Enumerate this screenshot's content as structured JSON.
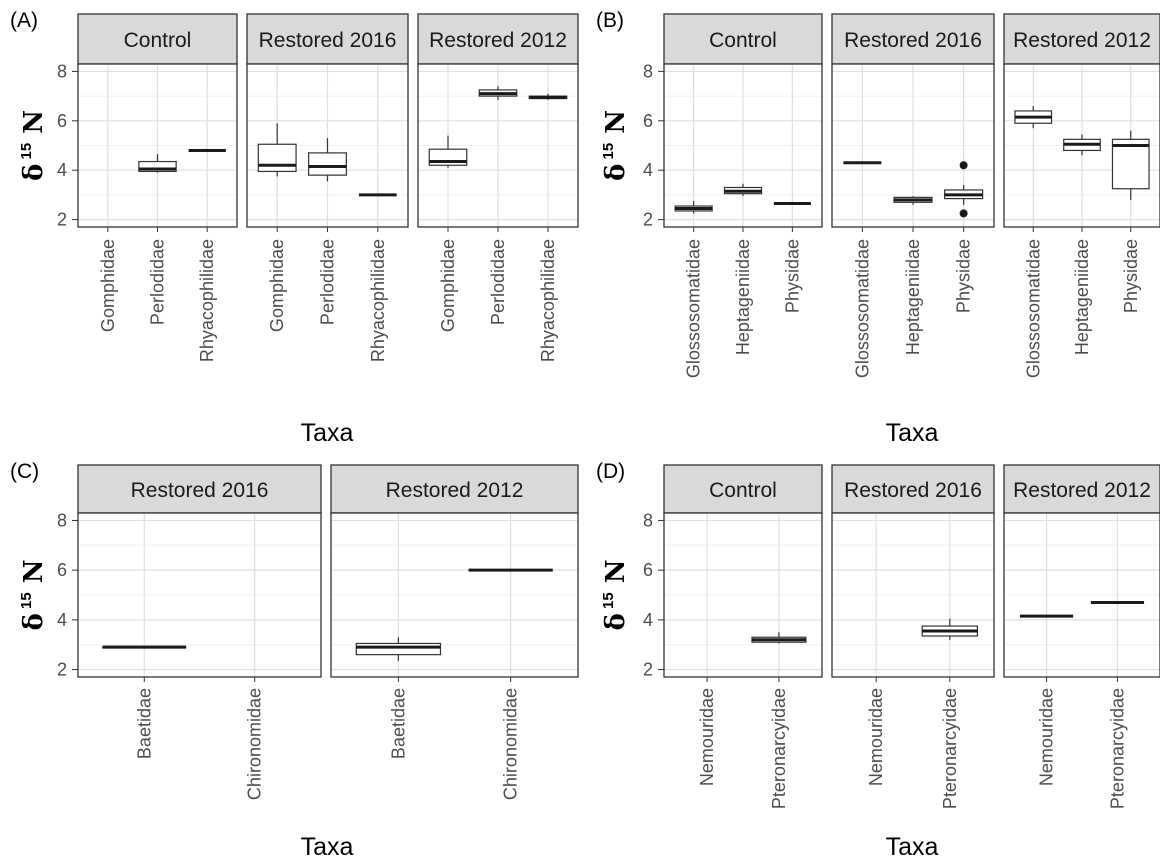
{
  "chart_data": [
    {
      "panel": "(A)",
      "type": "boxplot",
      "xlabel": "Taxa",
      "ylabel": {
        "symbol": "δ",
        "superscript": "15",
        "element": "N"
      },
      "ylim": [
        1.7,
        8.3
      ],
      "yticks": [
        2,
        4,
        6,
        8
      ],
      "grid": true,
      "facets": [
        {
          "title": "Control",
          "categories": [
            "Gomphidae",
            "Perlodidae",
            "Rhyacophilidae"
          ],
          "boxes": [
            null,
            {
              "lower": 3.9,
              "q1": 3.95,
              "median": 4.05,
              "q3": 4.35,
              "upper": 4.65,
              "outliers": []
            },
            {
              "lower": 4.8,
              "q1": 4.8,
              "median": 4.8,
              "q3": 4.8,
              "upper": 4.8,
              "outliers": []
            }
          ]
        },
        {
          "title": "Restored 2016",
          "categories": [
            "Gomphidae",
            "Perlodidae",
            "Rhyacophilidae"
          ],
          "boxes": [
            {
              "lower": 3.75,
              "q1": 3.95,
              "median": 4.2,
              "q3": 5.05,
              "upper": 5.9,
              "outliers": []
            },
            {
              "lower": 3.55,
              "q1": 3.8,
              "median": 4.15,
              "q3": 4.7,
              "upper": 5.3,
              "outliers": []
            },
            {
              "lower": 3.0,
              "q1": 3.0,
              "median": 3.0,
              "q3": 3.0,
              "upper": 3.0,
              "outliers": []
            }
          ]
        },
        {
          "title": "Restored 2012",
          "categories": [
            "Gomphidae",
            "Perlodidae",
            "Rhyacophilidae"
          ],
          "boxes": [
            {
              "lower": 4.1,
              "q1": 4.2,
              "median": 4.35,
              "q3": 4.85,
              "upper": 5.4,
              "outliers": []
            },
            {
              "lower": 6.85,
              "q1": 7.0,
              "median": 7.1,
              "q3": 7.25,
              "upper": 7.4,
              "outliers": []
            },
            {
              "lower": 6.85,
              "q1": 6.9,
              "median": 6.95,
              "q3": 7.0,
              "upper": 7.1,
              "outliers": []
            }
          ]
        }
      ]
    },
    {
      "panel": "(B)",
      "type": "boxplot",
      "xlabel": "Taxa",
      "ylabel": {
        "symbol": "δ",
        "superscript": "15",
        "element": "N"
      },
      "ylim": [
        1.7,
        8.3
      ],
      "yticks": [
        2,
        4,
        6,
        8
      ],
      "grid": true,
      "facets": [
        {
          "title": "Control",
          "categories": [
            "Glossosomatidae",
            "Heptageniidae",
            "Physidae"
          ],
          "boxes": [
            {
              "lower": 2.25,
              "q1": 2.35,
              "median": 2.45,
              "q3": 2.55,
              "upper": 2.75,
              "outliers": []
            },
            {
              "lower": 2.95,
              "q1": 3.05,
              "median": 3.15,
              "q3": 3.3,
              "upper": 3.45,
              "outliers": []
            },
            {
              "lower": 2.65,
              "q1": 2.65,
              "median": 2.65,
              "q3": 2.65,
              "upper": 2.65,
              "outliers": []
            }
          ]
        },
        {
          "title": "Restored 2016",
          "categories": [
            "Glossosomatidae",
            "Heptageniidae",
            "Physidae"
          ],
          "boxes": [
            {
              "lower": 4.3,
              "q1": 4.3,
              "median": 4.3,
              "q3": 4.3,
              "upper": 4.3,
              "outliers": []
            },
            {
              "lower": 2.6,
              "q1": 2.7,
              "median": 2.8,
              "q3": 2.9,
              "upper": 2.95,
              "outliers": []
            },
            {
              "lower": 2.6,
              "q1": 2.85,
              "median": 3.0,
              "q3": 3.2,
              "upper": 3.4,
              "outliers": [
                4.2,
                2.25
              ]
            }
          ]
        },
        {
          "title": "Restored 2012",
          "categories": [
            "Glossosomatidae",
            "Heptageniidae",
            "Physidae"
          ],
          "boxes": [
            {
              "lower": 5.7,
              "q1": 5.9,
              "median": 6.15,
              "q3": 6.4,
              "upper": 6.6,
              "outliers": []
            },
            {
              "lower": 4.6,
              "q1": 4.8,
              "median": 5.05,
              "q3": 5.25,
              "upper": 5.45,
              "outliers": []
            },
            {
              "lower": 2.8,
              "q1": 3.25,
              "median": 5.0,
              "q3": 5.25,
              "upper": 5.6,
              "outliers": []
            }
          ]
        }
      ]
    },
    {
      "panel": "(C)",
      "type": "boxplot",
      "xlabel": "Taxa",
      "ylabel": {
        "symbol": "δ",
        "superscript": "15",
        "element": "N"
      },
      "ylim": [
        1.7,
        8.3
      ],
      "yticks": [
        2,
        4,
        6,
        8
      ],
      "grid": true,
      "facets": [
        {
          "title": "Restored 2016",
          "categories": [
            "Baetidae",
            "Chironomidae"
          ],
          "boxes": [
            {
              "lower": 2.85,
              "q1": 2.87,
              "median": 2.9,
              "q3": 2.93,
              "upper": 2.95,
              "outliers": []
            },
            null
          ]
        },
        {
          "title": "Restored 2012",
          "categories": [
            "Baetidae",
            "Chironomidae"
          ],
          "boxes": [
            {
              "lower": 2.35,
              "q1": 2.6,
              "median": 2.9,
              "q3": 3.05,
              "upper": 3.3,
              "outliers": []
            },
            {
              "lower": 6.0,
              "q1": 6.0,
              "median": 6.0,
              "q3": 6.0,
              "upper": 6.0,
              "outliers": []
            }
          ]
        }
      ]
    },
    {
      "panel": "(D)",
      "type": "boxplot",
      "xlabel": "Taxa",
      "ylabel": {
        "symbol": "δ",
        "superscript": "15",
        "element": "N"
      },
      "ylim": [
        1.7,
        8.3
      ],
      "yticks": [
        2,
        4,
        6,
        8
      ],
      "grid": true,
      "facets": [
        {
          "title": "Control",
          "categories": [
            "Nemouridae",
            "Pteronarcyidae"
          ],
          "boxes": [
            null,
            {
              "lower": 3.05,
              "q1": 3.1,
              "median": 3.2,
              "q3": 3.3,
              "upper": 3.5,
              "outliers": []
            }
          ]
        },
        {
          "title": "Restored 2016",
          "categories": [
            "Nemouridae",
            "Pteronarcyidae"
          ],
          "boxes": [
            null,
            {
              "lower": 3.2,
              "q1": 3.35,
              "median": 3.55,
              "q3": 3.75,
              "upper": 4.05,
              "outliers": []
            }
          ]
        },
        {
          "title": "Restored 2012",
          "categories": [
            "Nemouridae",
            "Pteronarcyidae"
          ],
          "boxes": [
            {
              "lower": 4.15,
              "q1": 4.15,
              "median": 4.15,
              "q3": 4.15,
              "upper": 4.15,
              "outliers": []
            },
            {
              "lower": 4.7,
              "q1": 4.7,
              "median": 4.7,
              "q3": 4.7,
              "upper": 4.7,
              "outliers": []
            }
          ]
        }
      ]
    }
  ]
}
